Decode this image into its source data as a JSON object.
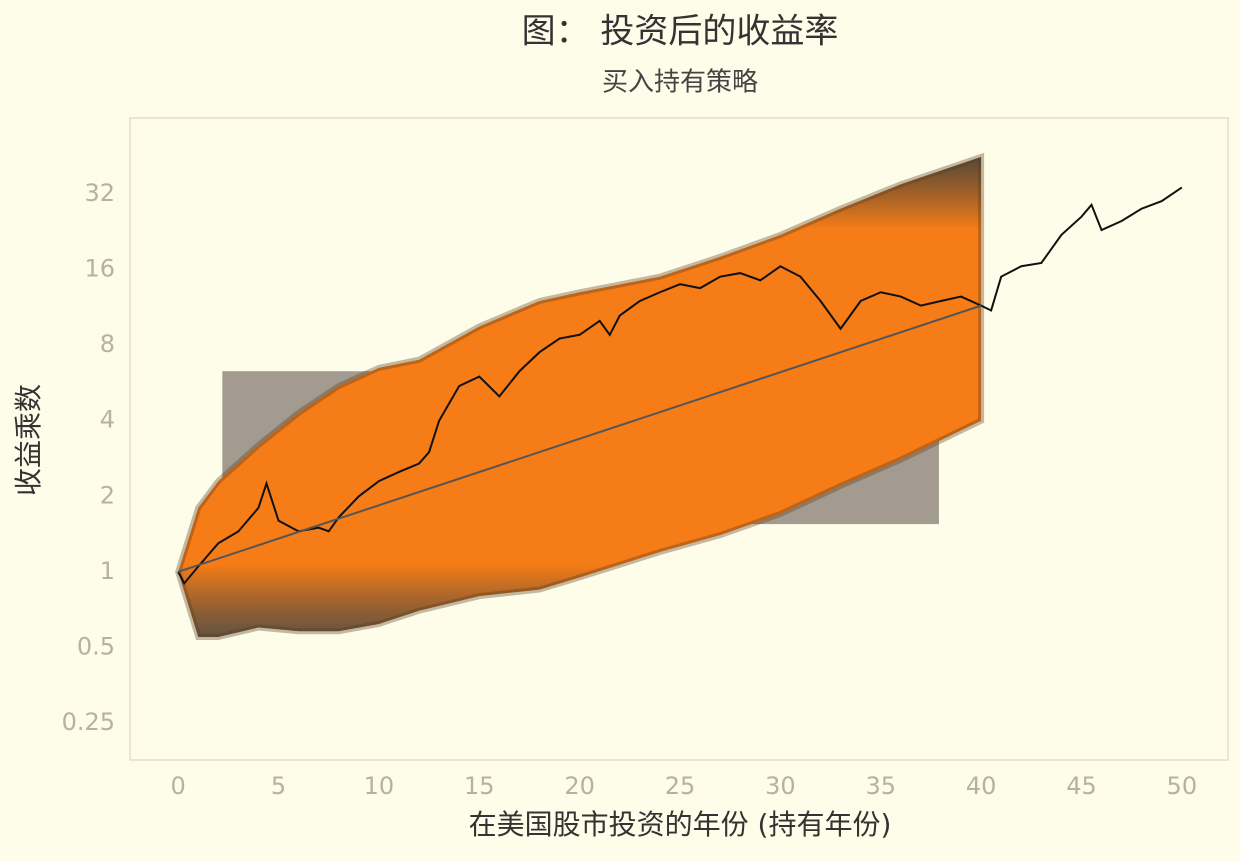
{
  "chart_data": {
    "type": "line",
    "title": "图： 投资后的收益率",
    "subtitle": "买入持有策略",
    "x_label": "在美国股市投资的年份 (持有年份)",
    "y_label": "收益乘数",
    "log_scale": "y",
    "xlim": [
      -2.4,
      52.3
    ],
    "ylim": [
      0.178,
      64.3
    ],
    "xticks": [
      0,
      5,
      10,
      15,
      20,
      25,
      30,
      35,
      40,
      45,
      50
    ],
    "yticks": [
      0.25,
      0.5,
      1,
      2,
      4,
      8,
      16,
      32
    ],
    "highlight": {
      "x": [
        2.2,
        37.9
      ],
      "y": [
        1.55,
        6.3
      ],
      "color": "#a39b8f"
    },
    "band": {
      "color": "#f57c17",
      "x": [
        0,
        1,
        2,
        4,
        6,
        8,
        10,
        12,
        15,
        18,
        20,
        24,
        27,
        30,
        33,
        36,
        40
      ],
      "upper": [
        1,
        1.8,
        2.3,
        3.2,
        4.3,
        5.5,
        6.5,
        7,
        9.5,
        12,
        13,
        15,
        18,
        22,
        28,
        35,
        45
      ],
      "lower": [
        1,
        0.55,
        0.55,
        0.6,
        0.58,
        0.58,
        0.62,
        0.7,
        0.8,
        0.85,
        0.95,
        1.2,
        1.4,
        1.7,
        2.2,
        2.8,
        4
      ]
    },
    "series": [
      {
        "color": "#111111",
        "x": [
          0,
          0.3,
          1,
          2,
          3,
          4,
          4.4,
          5,
          6,
          7,
          7.5,
          8,
          9,
          10,
          11,
          12,
          12.5,
          13,
          14,
          15,
          16,
          17,
          18,
          19,
          20,
          21,
          21.5,
          22,
          23,
          24,
          25,
          26,
          27,
          28,
          29,
          30,
          31,
          32,
          33,
          34,
          35,
          36,
          37,
          38,
          39,
          40,
          40.5,
          41,
          42,
          43,
          44,
          45,
          45.5,
          46,
          47,
          48,
          49,
          50
        ],
        "values": [
          1,
          0.9,
          1.05,
          1.3,
          1.45,
          1.8,
          2.25,
          1.6,
          1.45,
          1.5,
          1.45,
          1.65,
          2.0,
          2.3,
          2.5,
          2.7,
          3.0,
          4.0,
          5.5,
          6.0,
          5.0,
          6.3,
          7.5,
          8.5,
          8.8,
          10,
          8.8,
          10.5,
          12,
          13,
          14,
          13.5,
          15,
          15.5,
          14.5,
          16.5,
          15,
          12,
          9.3,
          12,
          13,
          12.5,
          11.5,
          12,
          12.5,
          11.5,
          11,
          15,
          16.5,
          17,
          22,
          26,
          29,
          23,
          25,
          28,
          30,
          34
        ]
      },
      {
        "color": "#555555",
        "x": [
          0,
          40
        ],
        "values": [
          1,
          11.5
        ]
      }
    ]
  }
}
